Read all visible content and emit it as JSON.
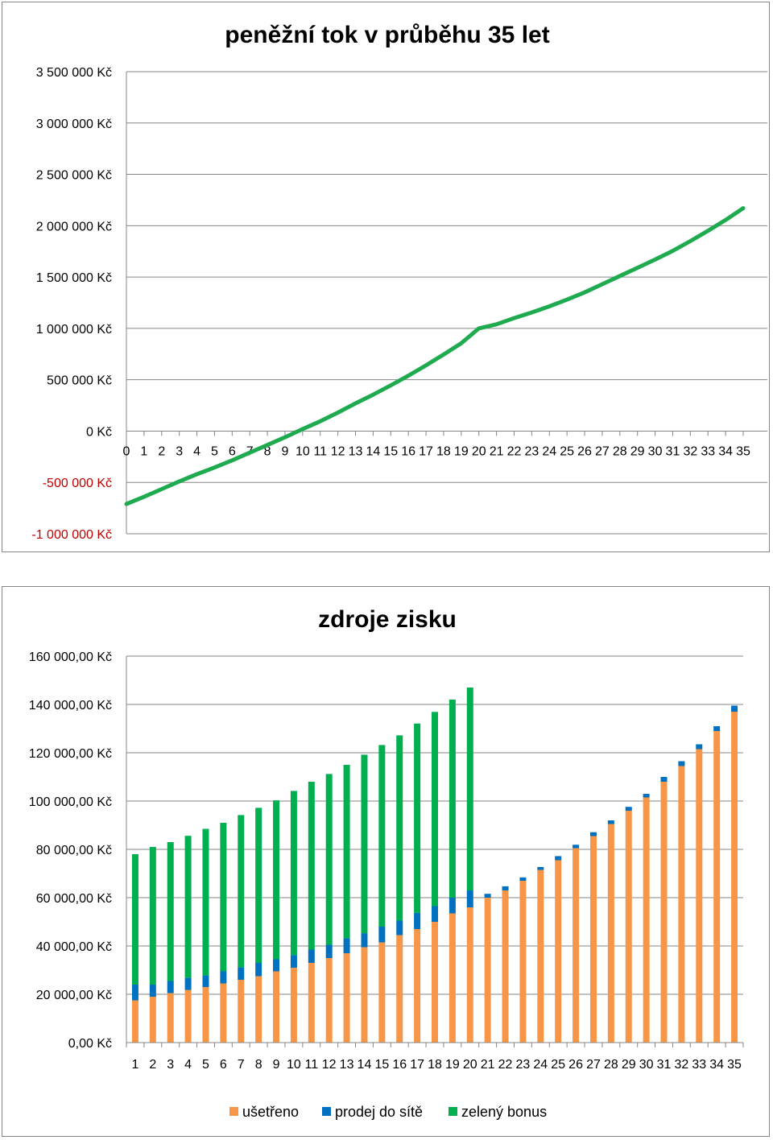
{
  "chart_data": [
    {
      "type": "line",
      "title": "peněžní tok v průběhu 35 let",
      "xlabel": "",
      "ylabel": "",
      "x": [
        0,
        1,
        2,
        3,
        4,
        5,
        6,
        7,
        8,
        9,
        10,
        11,
        12,
        13,
        14,
        15,
        16,
        17,
        18,
        19,
        20,
        21,
        22,
        23,
        24,
        25,
        26,
        27,
        28,
        29,
        30,
        31,
        32,
        33,
        34,
        35
      ],
      "y": [
        -710000,
        -640000,
        -565000,
        -490000,
        -420000,
        -355000,
        -285000,
        -210000,
        -135000,
        -60000,
        20000,
        95000,
        180000,
        270000,
        355000,
        445000,
        540000,
        640000,
        745000,
        855000,
        1000000,
        1040000,
        1100000,
        1155000,
        1215000,
        1280000,
        1350000,
        1430000,
        1510000,
        1590000,
        1670000,
        1755000,
        1850000,
        1950000,
        2055000,
        2170000
      ],
      "ylim": [
        -1000000,
        3500000
      ],
      "y_ticks": [
        "3 500 000 Kč",
        "3 000 000 Kč",
        "2 500 000 Kč",
        "2 000 000 Kč",
        "1 500 000 Kč",
        "1 000 000 Kč",
        "500 000 Kč",
        "0 Kč",
        "-500 000 Kč",
        "-1 000 000 Kč"
      ],
      "x_ticks": [
        "0",
        "1",
        "2",
        "3",
        "4",
        "5",
        "6",
        "7",
        "8",
        "9",
        "10",
        "11",
        "12",
        "13",
        "14",
        "15",
        "16",
        "17",
        "18",
        "19",
        "20",
        "21",
        "22",
        "23",
        "24",
        "25",
        "26",
        "27",
        "28",
        "29",
        "30",
        "31",
        "32",
        "33",
        "34",
        "35"
      ],
      "grid": true,
      "legend": "none",
      "series_color": "#1eaa4e",
      "negative_tick_color": "#c00000"
    },
    {
      "type": "bar",
      "stacked": true,
      "title": "zdroje zisku",
      "xlabel": "",
      "ylabel": "",
      "categories": [
        "1",
        "2",
        "3",
        "4",
        "5",
        "6",
        "7",
        "8",
        "9",
        "10",
        "11",
        "12",
        "13",
        "14",
        "15",
        "16",
        "17",
        "18",
        "19",
        "20",
        "21",
        "22",
        "23",
        "24",
        "25",
        "26",
        "27",
        "28",
        "29",
        "30",
        "31",
        "32",
        "33",
        "34",
        "35"
      ],
      "series": [
        {
          "name": "ušetřeno",
          "color": "#f79646",
          "values": [
            17500,
            19000,
            20500,
            21800,
            23000,
            24500,
            26000,
            27500,
            29500,
            31000,
            33000,
            35000,
            37000,
            39500,
            41500,
            44500,
            47000,
            50000,
            53500,
            56000,
            60000,
            63000,
            67000,
            71500,
            75500,
            80500,
            85500,
            90500,
            96000,
            101500,
            108000,
            114500,
            121500,
            129000,
            137000
          ]
        },
        {
          "name": "prodej do sítě",
          "color": "#0070c0",
          "values": [
            6500,
            5000,
            5000,
            5000,
            4800,
            5000,
            5200,
            5500,
            5000,
            5200,
            5500,
            5500,
            6200,
            5800,
            6500,
            6000,
            6700,
            6500,
            6500,
            7000,
            1600,
            1700,
            1400,
            1200,
            1700,
            1400,
            1600,
            1500,
            1600,
            1500,
            2000,
            2000,
            2000,
            2000,
            2500
          ]
        },
        {
          "name": "zelený bonus",
          "color": "#00b050",
          "values": [
            54000,
            57000,
            57500,
            58800,
            60700,
            61500,
            63000,
            64200,
            65800,
            68000,
            69500,
            70700,
            71800,
            73900,
            75200,
            76700,
            78400,
            80400,
            82000,
            84000,
            0,
            0,
            0,
            0,
            0,
            0,
            0,
            0,
            0,
            0,
            0,
            0,
            0,
            0,
            0
          ]
        }
      ],
      "ylim": [
        0,
        160000
      ],
      "y_ticks": [
        "160 000,00 Kč",
        "140 000,00 Kč",
        "120 000,00 Kč",
        "100 000,00 Kč",
        "80 000,00 Kč",
        "60 000,00 Kč",
        "40 000,00 Kč",
        "20 000,00 Kč",
        "0,00 Kč"
      ],
      "grid": true,
      "legend": "bottom"
    }
  ]
}
